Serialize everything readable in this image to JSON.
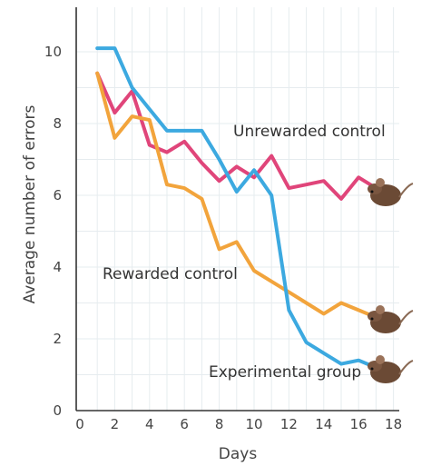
{
  "chart_data": {
    "type": "line",
    "title": "",
    "xlabel": "Days",
    "ylabel": "Average number of errors",
    "xlim": [
      0,
      18
    ],
    "ylim": [
      0,
      11
    ],
    "x_ticks": [
      0,
      2,
      4,
      6,
      8,
      10,
      12,
      14,
      16,
      18
    ],
    "y_ticks": [
      0,
      2,
      4,
      6,
      8,
      10
    ],
    "grid": true,
    "legend": "inline labels next to each line",
    "series": [
      {
        "name": "Unrewarded control",
        "color": "#e0457a",
        "x": [
          1,
          2,
          3,
          4,
          5,
          6,
          7,
          8,
          9,
          10,
          11,
          12,
          13,
          14,
          15,
          16,
          17
        ],
        "y": [
          9.4,
          8.3,
          8.9,
          7.4,
          7.2,
          7.5,
          6.9,
          6.4,
          6.8,
          6.5,
          7.1,
          6.2,
          6.3,
          6.4,
          5.9,
          6.5,
          6.2
        ]
      },
      {
        "name": "Rewarded control",
        "color": "#f2a43c",
        "x": [
          1,
          2,
          3,
          4,
          5,
          6,
          7,
          8,
          9,
          10,
          11,
          12,
          13,
          14,
          15,
          16,
          17
        ],
        "y": [
          9.4,
          7.6,
          8.2,
          8.1,
          6.3,
          6.2,
          5.9,
          4.5,
          4.7,
          3.9,
          3.6,
          3.3,
          3.0,
          2.7,
          3.0,
          2.8,
          2.6
        ]
      },
      {
        "name": "Experimental group",
        "color": "#3ca9e0",
        "x": [
          1,
          2,
          3,
          4,
          5,
          6,
          7,
          8,
          9,
          10,
          11,
          12,
          13,
          14,
          15,
          16,
          17
        ],
        "y": [
          10.1,
          10.1,
          9.0,
          8.4,
          7.8,
          7.8,
          7.8,
          7.0,
          6.1,
          6.7,
          6.0,
          2.8,
          1.9,
          1.6,
          1.3,
          1.4,
          1.2
        ]
      }
    ]
  }
}
